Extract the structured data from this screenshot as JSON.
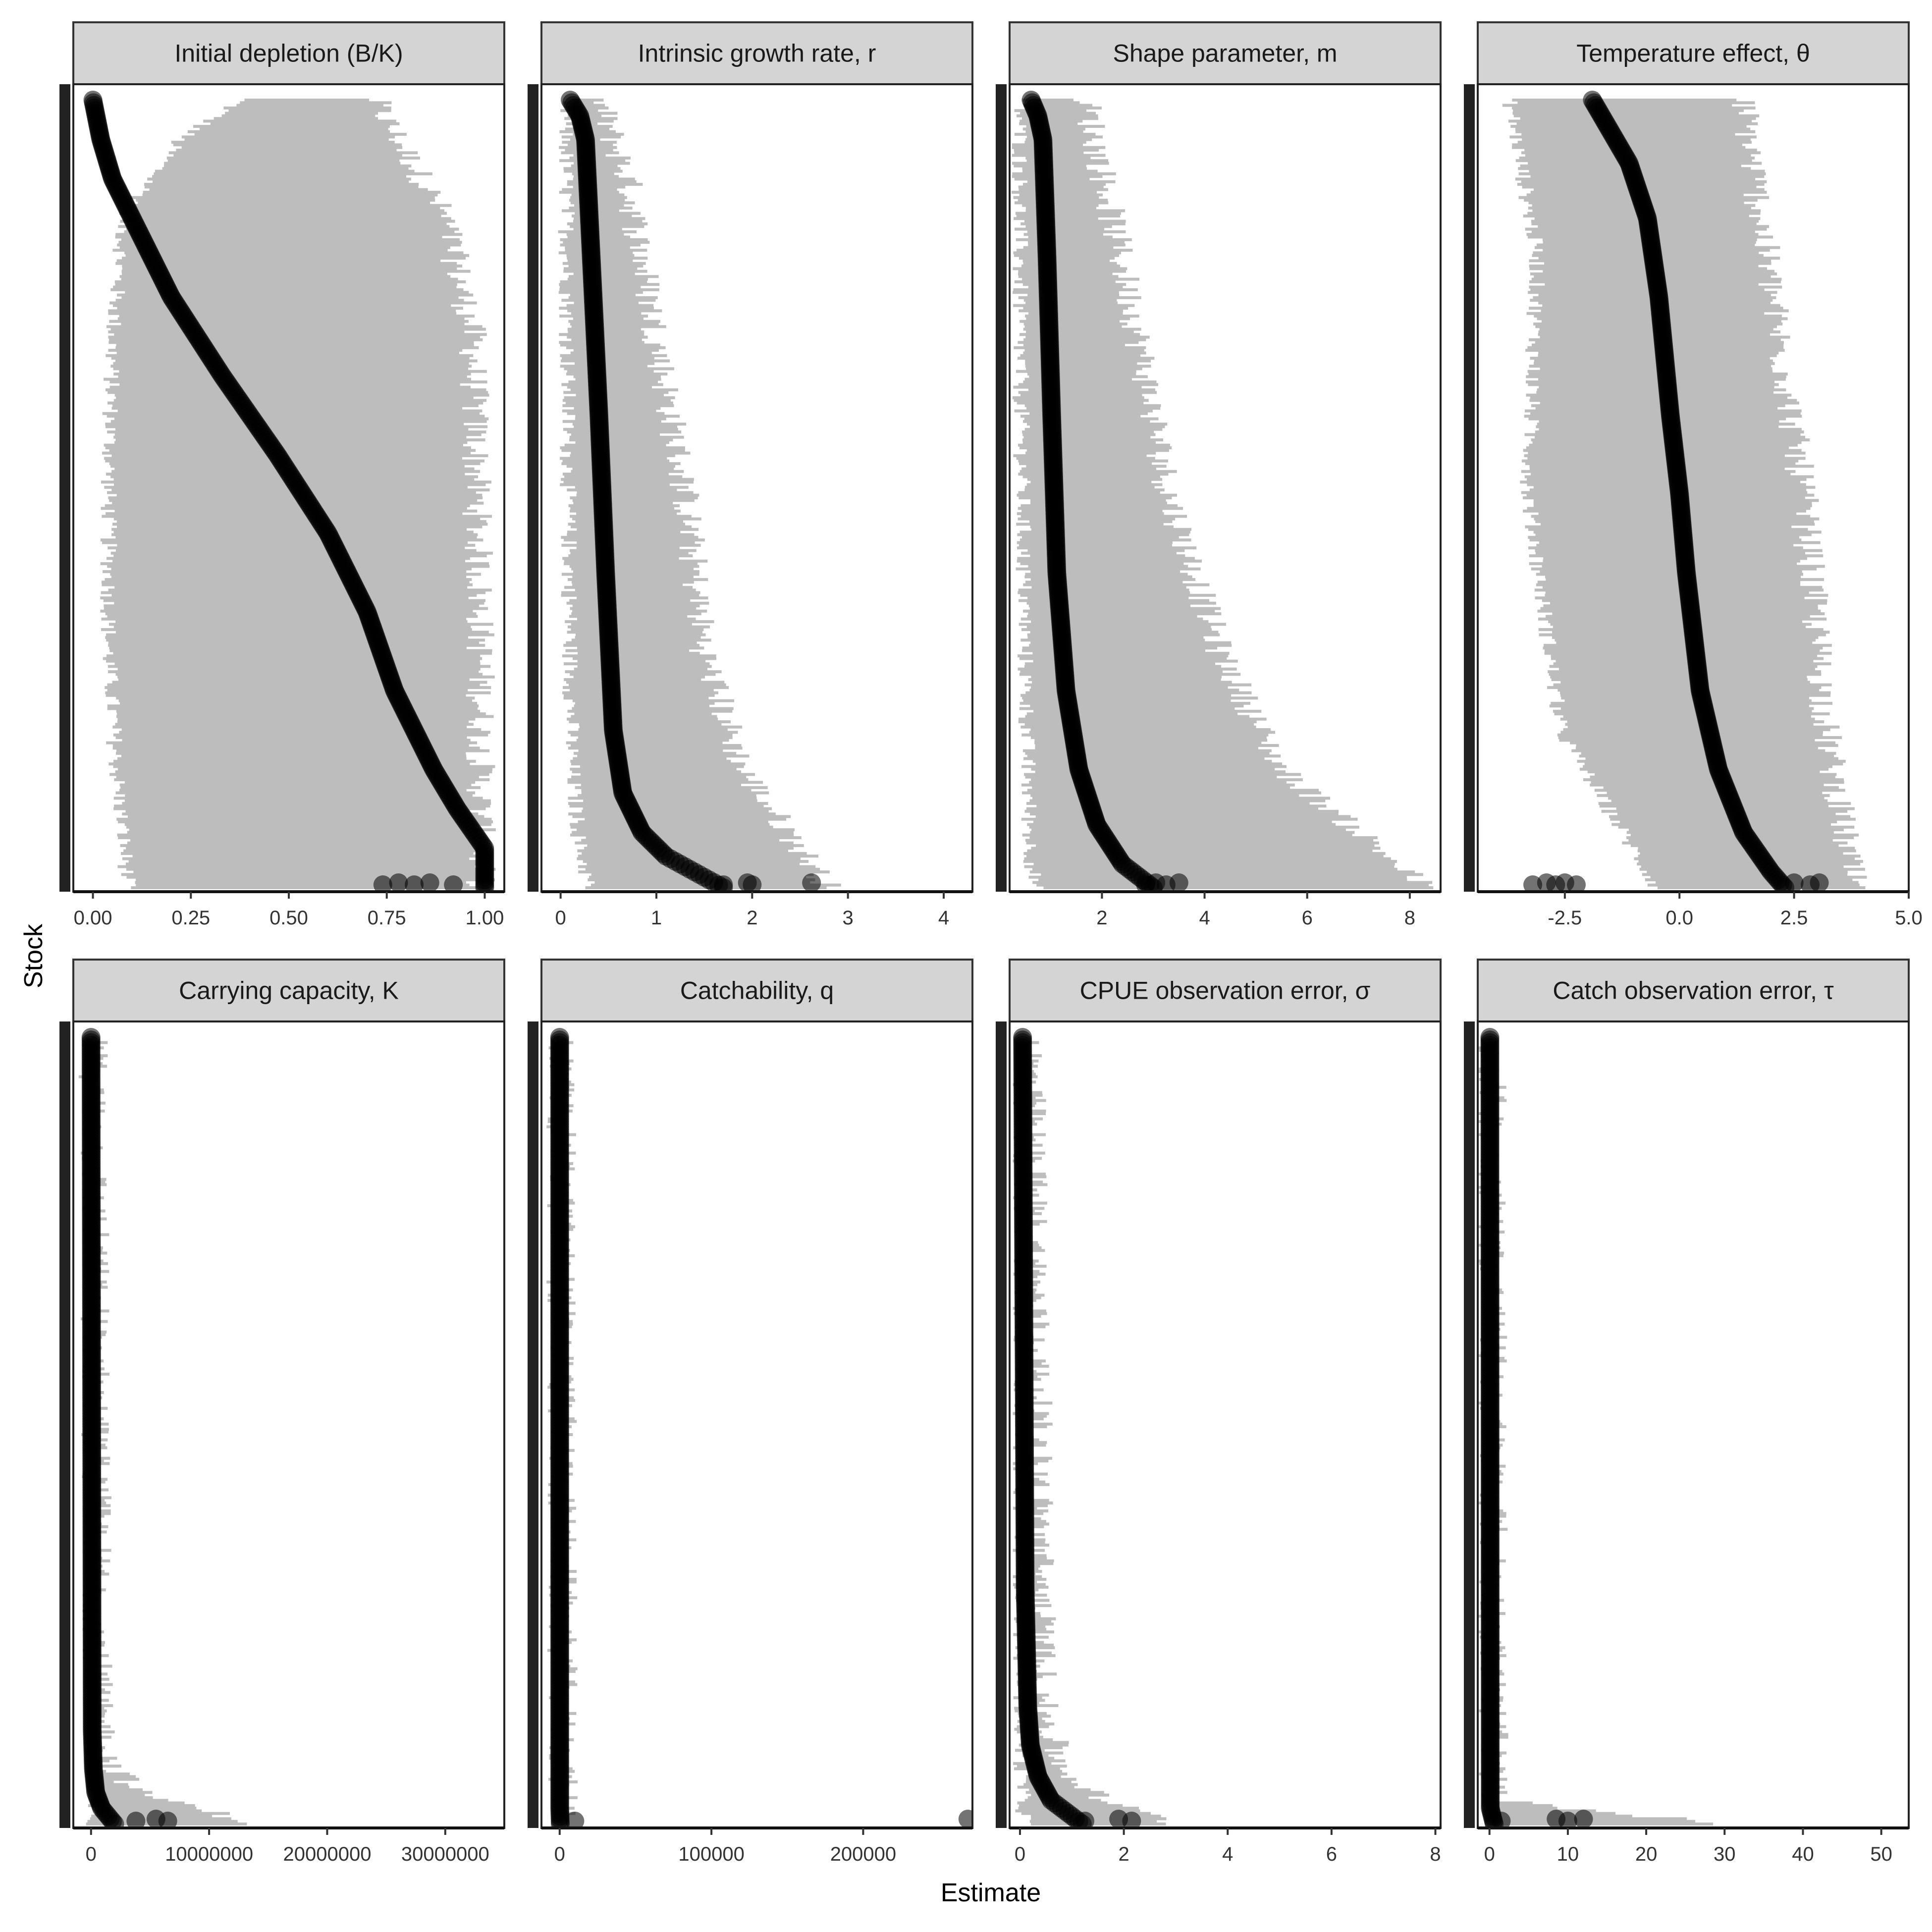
{
  "figure": {
    "xlabel": "Estimate",
    "ylabel": "Stock"
  },
  "chart_data": [
    {
      "type": "scatter",
      "title": "Initial depletion (B/K)",
      "xlim": [
        -0.05,
        1.05
      ],
      "xticks": [
        0,
        0.25,
        0.5,
        0.75,
        1.0
      ],
      "xtick_labels": [
        "0.00",
        "0.25",
        "0.50",
        "0.75",
        "1.00"
      ],
      "estimate_curve": [
        [
          0.0,
          0.0
        ],
        [
          0.05,
          0.02
        ],
        [
          0.1,
          0.05
        ],
        [
          0.15,
          0.1
        ],
        [
          0.25,
          0.2
        ],
        [
          0.35,
          0.33
        ],
        [
          0.45,
          0.47
        ],
        [
          0.55,
          0.6
        ],
        [
          0.65,
          0.7
        ],
        [
          0.75,
          0.77
        ],
        [
          0.85,
          0.87
        ],
        [
          0.9,
          0.93
        ],
        [
          0.95,
          1.0
        ]
      ],
      "interval_profile": [
        [
          0.0,
          0.38,
          0.72
        ],
        [
          0.05,
          0.22,
          0.78
        ],
        [
          0.15,
          0.08,
          0.9
        ],
        [
          0.3,
          0.05,
          0.97
        ],
        [
          0.5,
          0.04,
          0.98
        ],
        [
          0.7,
          0.04,
          0.99
        ],
        [
          0.85,
          0.06,
          0.99
        ],
        [
          1.0,
          0.09,
          0.99
        ]
      ],
      "outliers": [
        0.74,
        0.78,
        0.82,
        0.86,
        0.92
      ]
    },
    {
      "type": "scatter",
      "title": "Intrinsic growth rate, r",
      "xlim": [
        -0.2,
        4.3
      ],
      "xticks": [
        0,
        1,
        2,
        3,
        4
      ],
      "xtick_labels": [
        "0",
        "1",
        "2",
        "3",
        "4"
      ],
      "estimate_curve": [
        [
          0.0,
          0.1
        ],
        [
          0.02,
          0.2
        ],
        [
          0.05,
          0.26
        ],
        [
          0.2,
          0.32
        ],
        [
          0.4,
          0.4
        ],
        [
          0.6,
          0.47
        ],
        [
          0.8,
          0.55
        ],
        [
          0.88,
          0.65
        ],
        [
          0.93,
          0.85
        ],
        [
          0.96,
          1.1
        ],
        [
          0.98,
          1.4
        ],
        [
          1.0,
          1.7
        ]
      ],
      "interval_profile": [
        [
          0.0,
          0.05,
          0.4
        ],
        [
          0.1,
          0.06,
          0.7
        ],
        [
          0.3,
          0.07,
          1.0
        ],
        [
          0.5,
          0.08,
          1.3
        ],
        [
          0.7,
          0.1,
          1.5
        ],
        [
          0.85,
          0.12,
          1.9
        ],
        [
          0.95,
          0.2,
          2.5
        ],
        [
          1.0,
          0.3,
          2.8
        ]
      ],
      "outliers": [
        1.7,
        1.95,
        2.0,
        2.62
      ]
    },
    {
      "type": "scatter",
      "title": "Shape parameter, m",
      "xlim": [
        0.2,
        8.6
      ],
      "xticks": [
        2,
        4,
        6,
        8
      ],
      "xtick_labels": [
        "2",
        "4",
        "6",
        "8"
      ],
      "estimate_curve": [
        [
          0.0,
          0.62
        ],
        [
          0.02,
          0.75
        ],
        [
          0.05,
          0.85
        ],
        [
          0.2,
          0.93
        ],
        [
          0.4,
          1.02
        ],
        [
          0.6,
          1.12
        ],
        [
          0.75,
          1.3
        ],
        [
          0.85,
          1.55
        ],
        [
          0.92,
          1.9
        ],
        [
          0.97,
          2.4
        ],
        [
          1.0,
          3.0
        ]
      ],
      "interval_profile": [
        [
          0.0,
          0.4,
          1.7
        ],
        [
          0.15,
          0.4,
          2.2
        ],
        [
          0.3,
          0.4,
          2.7
        ],
        [
          0.5,
          0.45,
          3.3
        ],
        [
          0.7,
          0.5,
          4.3
        ],
        [
          0.85,
          0.55,
          5.5
        ],
        [
          0.95,
          0.6,
          7.4
        ],
        [
          1.0,
          0.7,
          8.3
        ]
      ],
      "outliers": [
        2.85,
        3.05,
        3.25,
        3.5
      ]
    },
    {
      "type": "scatter",
      "title": "Temperature effect, θ",
      "xlim": [
        -4.4,
        5.0
      ],
      "xticks": [
        -2.5,
        0,
        2.5,
        5.0
      ],
      "xtick_labels": [
        "-2.5",
        "0.0",
        "2.5",
        "5.0"
      ],
      "estimate_curve": [
        [
          0.0,
          -1.9
        ],
        [
          0.03,
          -1.6
        ],
        [
          0.08,
          -1.1
        ],
        [
          0.15,
          -0.7
        ],
        [
          0.25,
          -0.45
        ],
        [
          0.4,
          -0.2
        ],
        [
          0.5,
          0.0
        ],
        [
          0.6,
          0.15
        ],
        [
          0.75,
          0.45
        ],
        [
          0.85,
          0.85
        ],
        [
          0.93,
          1.4
        ],
        [
          0.98,
          2.0
        ],
        [
          1.0,
          2.3
        ]
      ],
      "interval_profile": [
        [
          0.0,
          -3.7,
          1.4
        ],
        [
          0.2,
          -3.1,
          1.9
        ],
        [
          0.5,
          -3.3,
          2.7
        ],
        [
          0.8,
          -2.6,
          3.2
        ],
        [
          1.0,
          -0.5,
          3.8
        ]
      ],
      "outliers": [
        -3.2,
        -2.9,
        -2.7,
        -2.5,
        -2.25,
        2.5,
        2.85,
        3.05
      ]
    },
    {
      "type": "scatter",
      "title": "Carrying capacity, K",
      "xlim": [
        -1500000,
        35000000
      ],
      "xticks": [
        0,
        10000000,
        20000000,
        30000000
      ],
      "xtick_labels": [
        "0",
        "10000000",
        "20000000",
        "30000000"
      ],
      "estimate_curve": [
        [
          0.0,
          0
        ],
        [
          0.88,
          100000
        ],
        [
          0.93,
          200000
        ],
        [
          0.96,
          400000
        ],
        [
          0.98,
          900000
        ],
        [
          1.0,
          2000000
        ]
      ],
      "interval_profile": [
        [
          0.0,
          0,
          200000
        ],
        [
          0.85,
          0,
          600000
        ],
        [
          0.92,
          0,
          1500000
        ],
        [
          0.96,
          0,
          4000000
        ],
        [
          1.0,
          0,
          14000000
        ]
      ],
      "outliers": [
        3800000,
        5500000,
        6500000
      ]
    },
    {
      "type": "scatter",
      "title": "Catchability, q",
      "xlim": [
        -12000,
        272000
      ],
      "xticks": [
        0,
        100000,
        200000
      ],
      "xtick_labels": [
        "0",
        "100000",
        "200000"
      ],
      "estimate_curve": [
        [
          0.0,
          0
        ],
        [
          0.98,
          50
        ],
        [
          1.0,
          400
        ]
      ],
      "interval_profile": [
        [
          0.0,
          0,
          800
        ],
        [
          0.95,
          0,
          2000
        ],
        [
          1.0,
          0,
          5000
        ]
      ],
      "outliers": [
        10000,
        269000
      ]
    },
    {
      "type": "scatter",
      "title": "CPUE observation error, σ",
      "xlim": [
        -0.2,
        8.1
      ],
      "xticks": [
        0,
        2,
        4,
        6,
        8
      ],
      "xtick_labels": [
        "0",
        "2",
        "4",
        "6",
        "8"
      ],
      "estimate_curve": [
        [
          0.0,
          0.05
        ],
        [
          0.7,
          0.1
        ],
        [
          0.85,
          0.15
        ],
        [
          0.9,
          0.2
        ],
        [
          0.94,
          0.35
        ],
        [
          0.97,
          0.6
        ],
        [
          1.0,
          1.2
        ]
      ],
      "interval_profile": [
        [
          0.0,
          0.02,
          0.2
        ],
        [
          0.85,
          0.03,
          0.45
        ],
        [
          0.93,
          0.03,
          0.8
        ],
        [
          0.97,
          0.05,
          1.6
        ],
        [
          1.0,
          0.1,
          3.0
        ]
      ],
      "outliers": [
        1.25,
        1.9,
        2.15
      ]
    },
    {
      "type": "scatter",
      "title": "Catch observation error, τ",
      "xlim": [
        -1.5,
        53.5
      ],
      "xticks": [
        0,
        10,
        20,
        30,
        40,
        50
      ],
      "xtick_labels": [
        "0",
        "10",
        "20",
        "30",
        "40",
        "50"
      ],
      "estimate_curve": [
        [
          0.0,
          0.05
        ],
        [
          0.98,
          0.1
        ],
        [
          1.0,
          0.6
        ]
      ],
      "interval_profile": [
        [
          0.0,
          0.01,
          0.3
        ],
        [
          0.97,
          0.01,
          0.5
        ],
        [
          1.0,
          0.05,
          30
        ]
      ],
      "outliers": [
        1.5,
        8.5,
        10,
        12
      ]
    }
  ]
}
